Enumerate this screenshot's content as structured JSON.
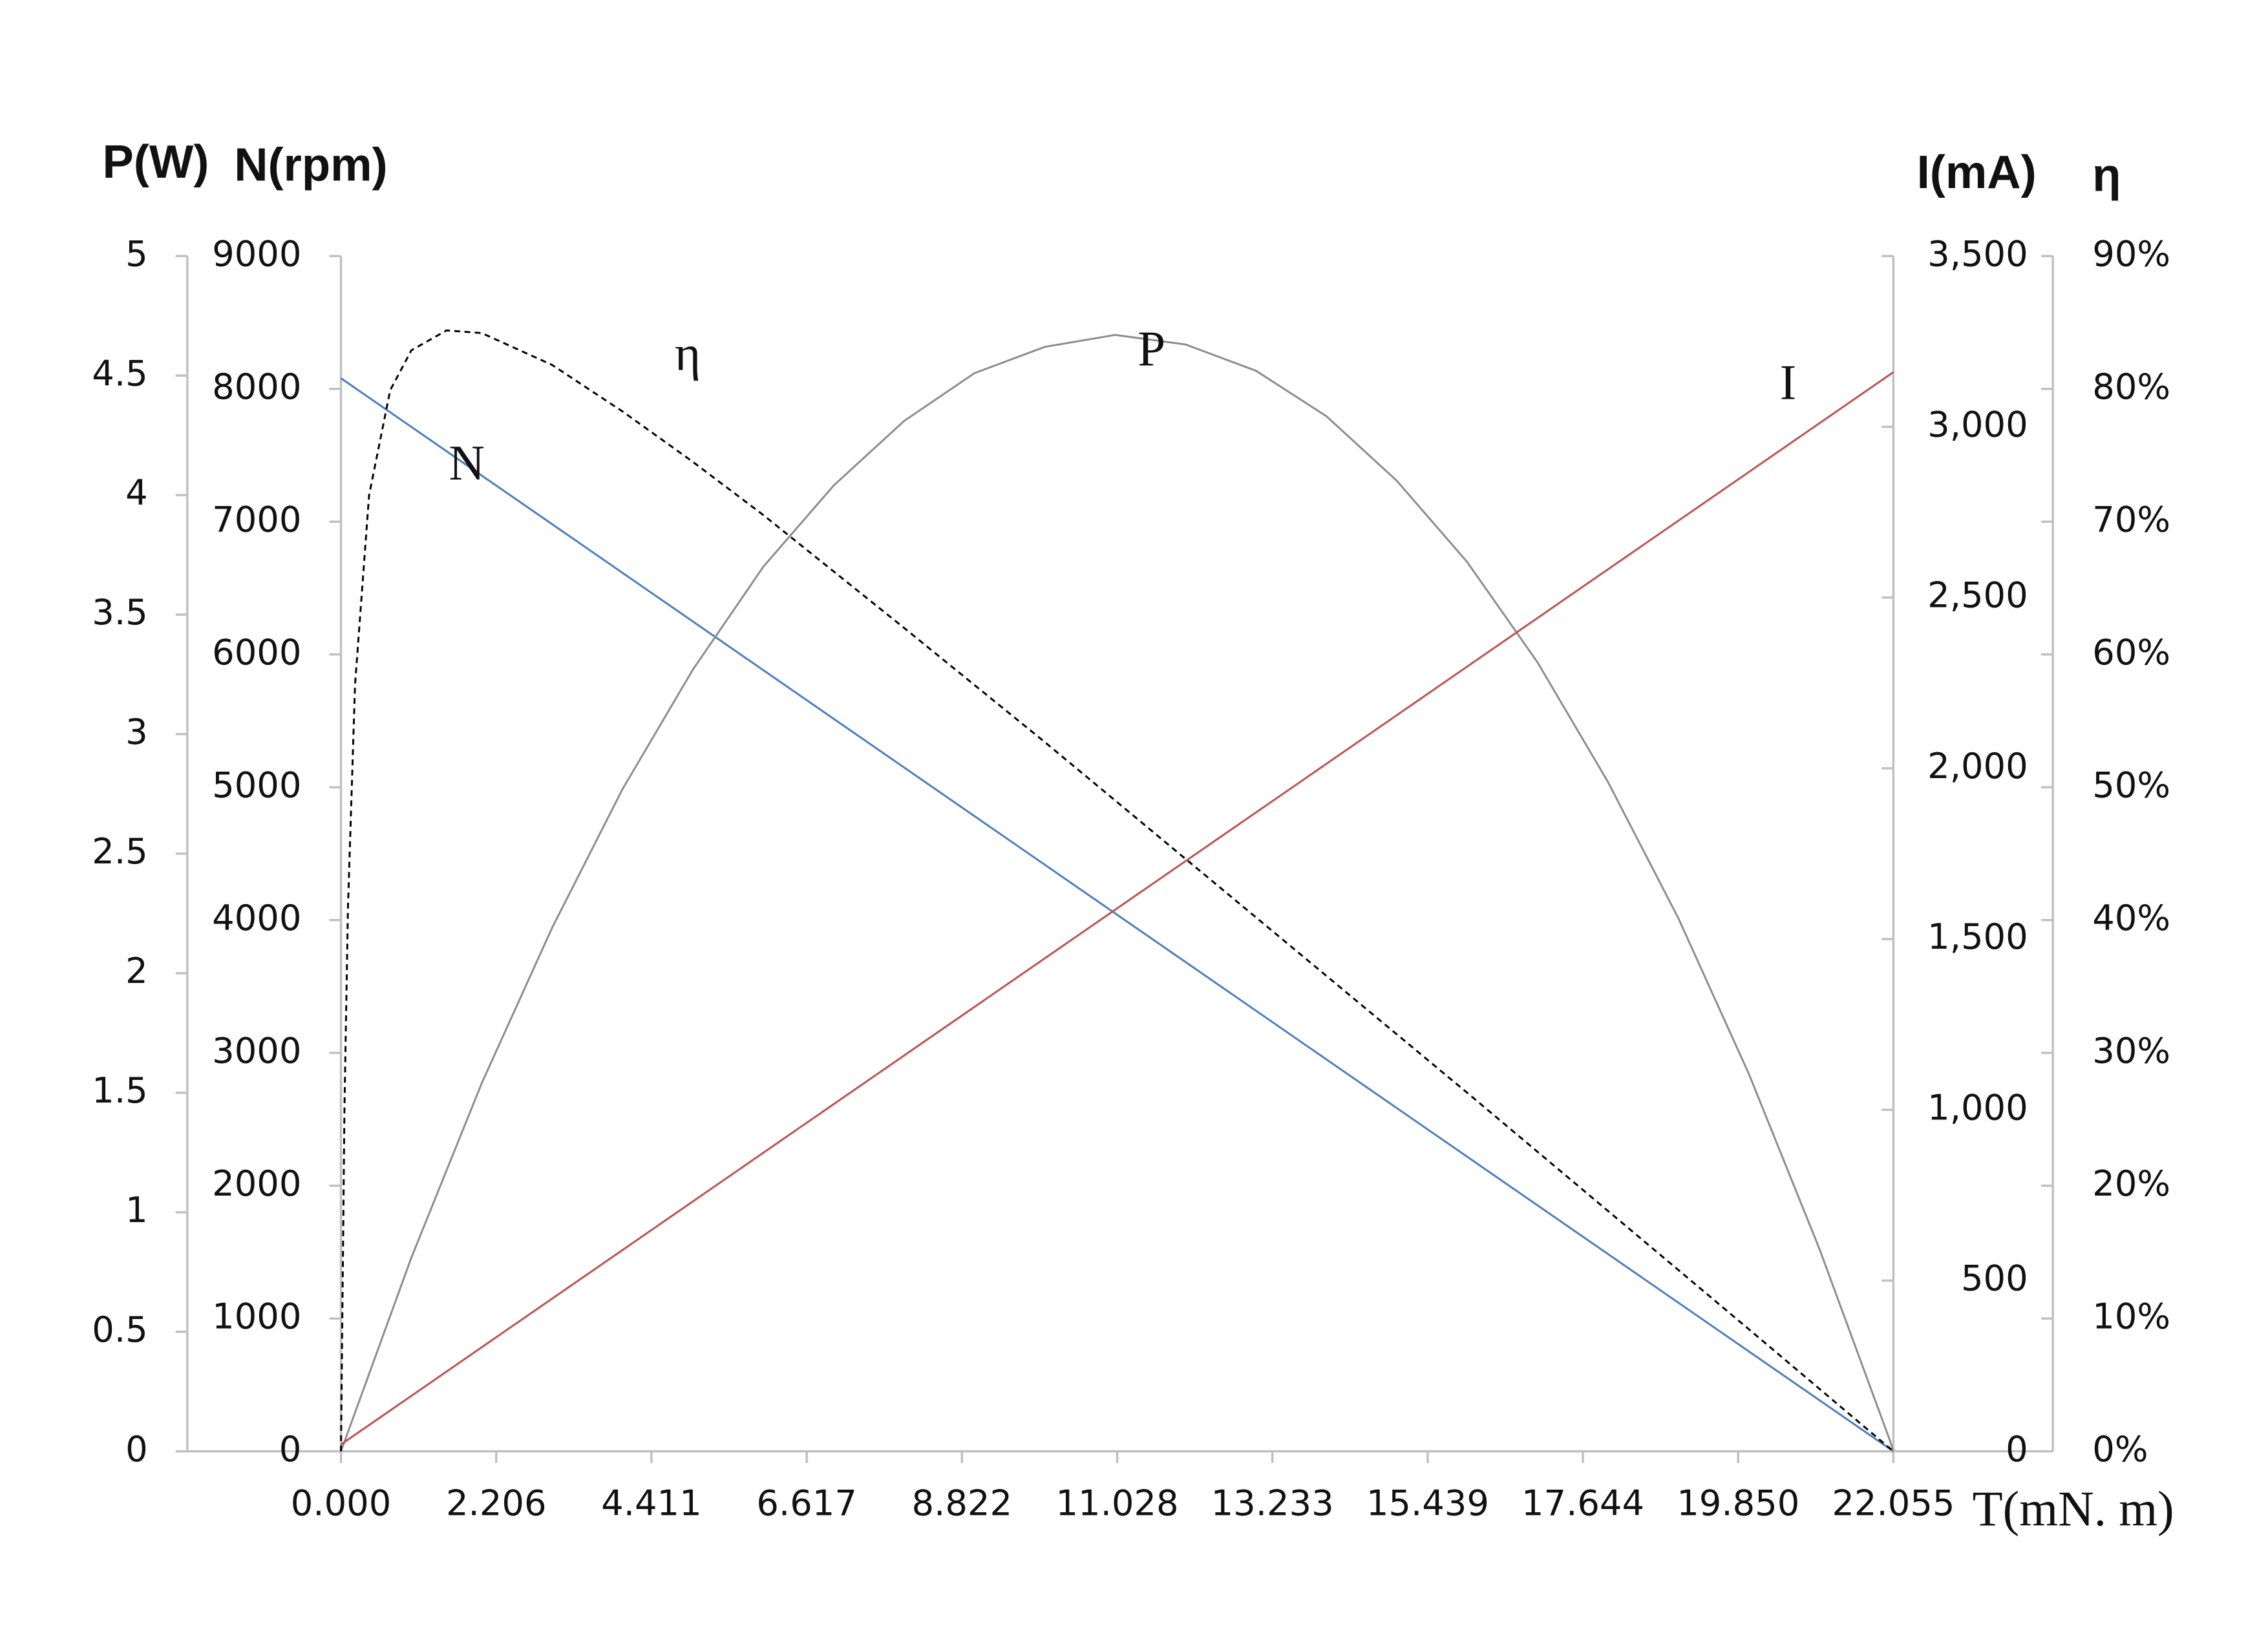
{
  "chart_data": {
    "type": "line",
    "x_label": "T(mN. m)",
    "xlim": [
      0,
      22.055
    ],
    "xticks": [
      {
        "value": 0,
        "label": "0.000"
      },
      2.206,
      4.411,
      6.617,
      8.822,
      11.028,
      13.233,
      15.439,
      17.644,
      {
        "value": 19.85,
        "label": "19.850"
      },
      22.055
    ],
    "y_axes": [
      {
        "label": "P(W)",
        "lim": [
          0,
          5
        ],
        "ticks": [
          0,
          0.5,
          1,
          1.5,
          2,
          2.5,
          3,
          3.5,
          4,
          4.5,
          5
        ]
      },
      {
        "label": "N(rpm)",
        "lim": [
          0,
          9000
        ],
        "ticks": [
          0,
          1000,
          2000,
          3000,
          4000,
          5000,
          6000,
          7000,
          8000,
          9000
        ]
      },
      {
        "label": "I(mA)",
        "lim": [
          0,
          3500
        ],
        "ticks": [
          0,
          500,
          {
            "value": 1000,
            "label": "1,000"
          },
          {
            "value": 1500,
            "label": "1,500"
          },
          {
            "value": 2000,
            "label": "2,000"
          },
          {
            "value": 2500,
            "label": "2,500"
          },
          {
            "value": 3000,
            "label": "3,000"
          },
          {
            "value": 3500,
            "label": "3,500"
          }
        ]
      },
      {
        "label": "η",
        "lim": [
          0,
          90
        ],
        "ticks": [
          {
            "value": 0,
            "label": "0%"
          },
          {
            "value": 10,
            "label": "10%"
          },
          {
            "value": 20,
            "label": "20%"
          },
          {
            "value": 30,
            "label": "30%"
          },
          {
            "value": 40,
            "label": "40%"
          },
          {
            "value": 50,
            "label": "50%"
          },
          {
            "value": 60,
            "label": "60%"
          },
          {
            "value": 70,
            "label": "70%"
          },
          {
            "value": 80,
            "label": "80%"
          },
          {
            "value": 90,
            "label": "90%"
          }
        ]
      }
    ],
    "series": [
      {
        "name": "N",
        "color": "#4a7ebb",
        "axis": 1,
        "dashed": false,
        "x": [
          0,
          22.055
        ],
        "values": [
          8080,
          0
        ]
      },
      {
        "name": "P",
        "color": "#8c8c8c",
        "axis": 0,
        "dashed": false,
        "x": [
          0,
          1,
          2,
          3,
          4,
          5,
          6,
          7,
          8,
          9,
          10,
          11,
          12,
          13,
          14,
          15,
          16,
          17,
          18,
          19,
          20,
          21,
          22,
          22.055
        ],
        "values": [
          0,
          0.81,
          1.54,
          2.19,
          2.77,
          3.27,
          3.7,
          4.04,
          4.31,
          4.51,
          4.62,
          4.67,
          4.63,
          4.52,
          4.33,
          4.06,
          3.72,
          3.3,
          2.8,
          2.23,
          1.58,
          0.85,
          0.05,
          0
        ]
      },
      {
        "name": "I",
        "color": "#c0504d",
        "axis": 2,
        "dashed": false,
        "x": [
          0,
          22.055
        ],
        "values": [
          20,
          3160
        ]
      },
      {
        "name": "η",
        "color": "#000000",
        "axis": 3,
        "dashed": true,
        "x": [
          0,
          0.05,
          0.1,
          0.2,
          0.4,
          0.7,
          1,
          1.5,
          2,
          3,
          4,
          5,
          6,
          8,
          10,
          12,
          14,
          16,
          18,
          20,
          22.055
        ],
        "values": [
          0,
          25.9,
          41,
          57.7,
          72,
          79.9,
          82.9,
          84.4,
          84.2,
          81.8,
          78.3,
          74.5,
          70.5,
          62,
          53.4,
          44.6,
          35.8,
          27,
          18.1,
          9.2,
          0
        ]
      }
    ]
  }
}
